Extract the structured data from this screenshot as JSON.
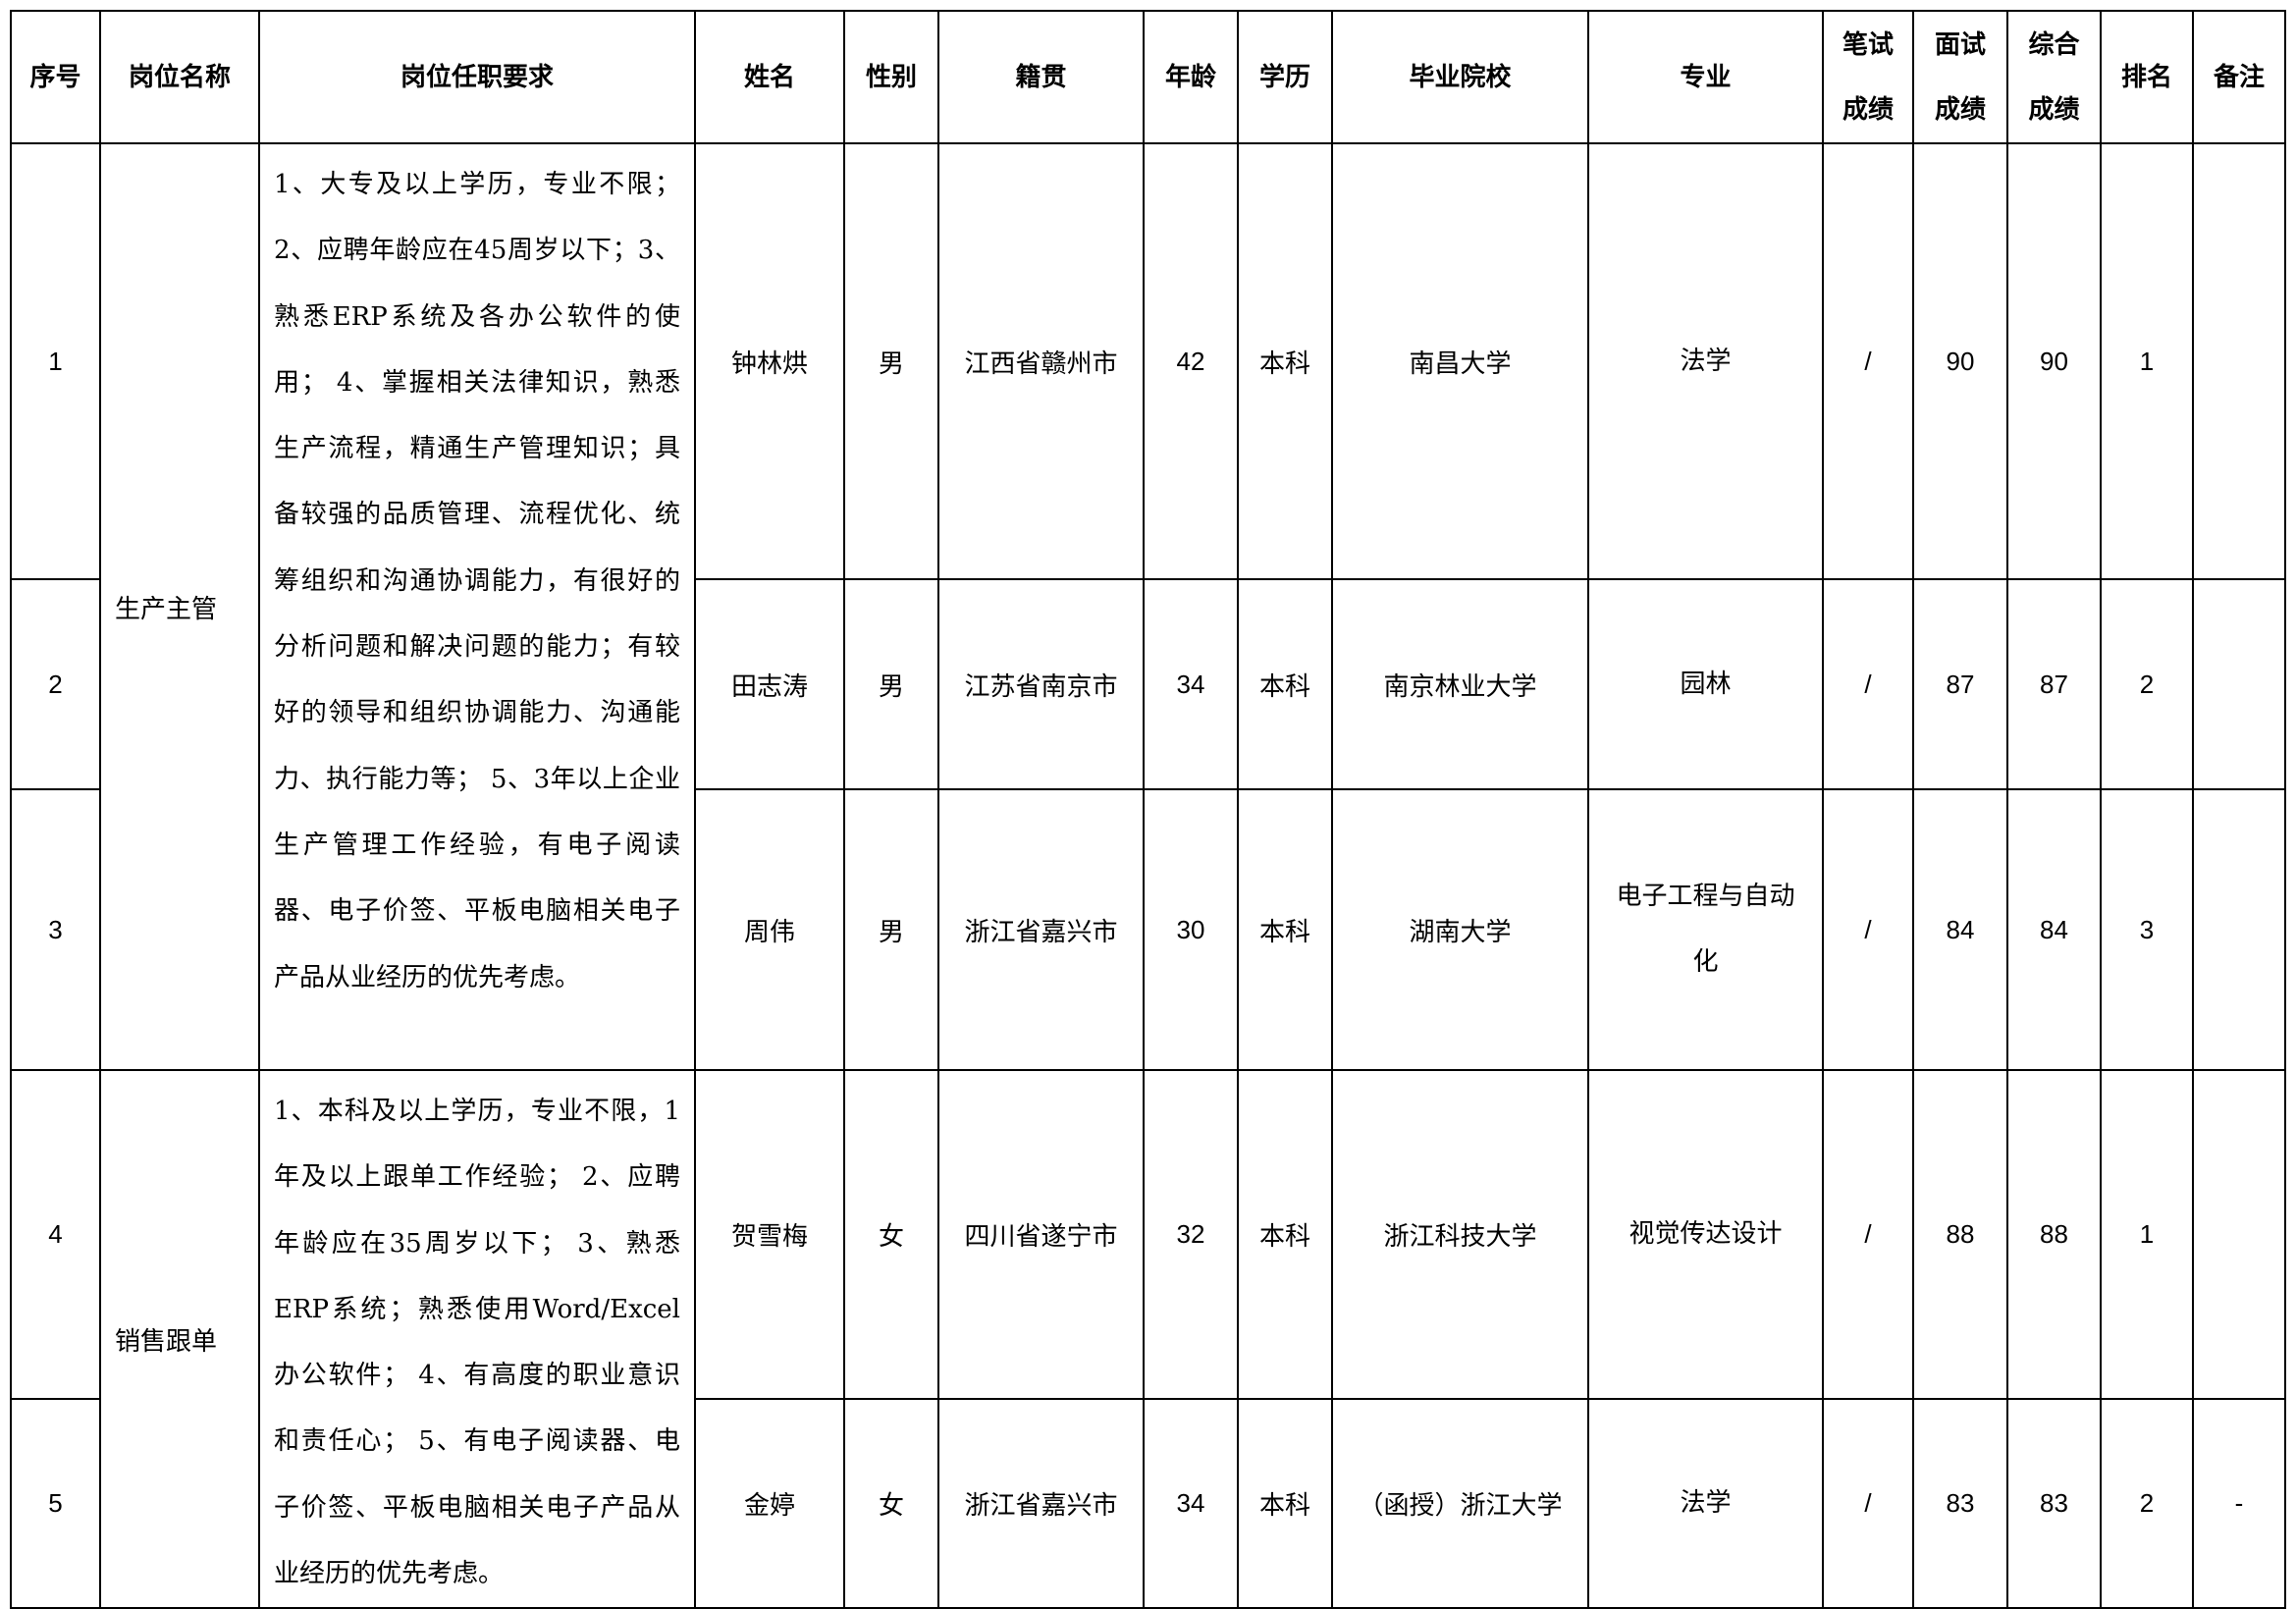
{
  "headers": {
    "seq": "序号",
    "position": "岗位名称",
    "requirements": "岗位任职要求",
    "name": "姓名",
    "gender": "性别",
    "origin": "籍贯",
    "age": "年龄",
    "education": "学历",
    "school": "毕业院校",
    "major": "专业",
    "written_1": "笔试",
    "written_2": "成绩",
    "interview_1": "面试",
    "interview_2": "成绩",
    "total_1": "综合",
    "total_2": "成绩",
    "rank": "排名",
    "remarks": "备注"
  },
  "positions": [
    {
      "name": "生产主管",
      "requirements": "1、大专及以上学历，专业不限；2、应聘年龄应在45周岁以下；3、熟悉ERP系统及各办公软件的使用； 4、掌握相关法律知识，熟悉生产流程，精通生产管理知识；具备较强的品质管理、流程优化、统筹组织和沟通协调能力，有很好的分析问题和解决问题的能力；有较好的领导和组织协调能力、沟通能力、执行能力等； 5、3年以上企业生产管理工作经验，有电子阅读器、电子价签、平板电脑相关电子产品从业经历的优先考虑。"
    },
    {
      "name": "销售跟单",
      "requirements": "1、本科及以上学历，专业不限，1年及以上跟单工作经验； 2、应聘年龄应在35周岁以下； 3、熟悉ERP系统；熟悉使用Word/Excel办公软件； 4、有高度的职业意识和责任心； 5、有电子阅读器、电子价签、平板电脑相关电子产品从业经历的优先考虑。"
    }
  ],
  "rows": [
    {
      "seq": "1",
      "name": "钟林烘",
      "gender": "男",
      "origin": "江西省赣州市",
      "age": "42",
      "education": "本科",
      "school": "南昌大学",
      "major": "法学",
      "written": "/",
      "interview": "90",
      "total": "90",
      "rank": "1",
      "remarks": ""
    },
    {
      "seq": "2",
      "name": "田志涛",
      "gender": "男",
      "origin": "江苏省南京市",
      "age": "34",
      "education": "本科",
      "school": "南京林业大学",
      "major": "园林",
      "written": "/",
      "interview": "87",
      "total": "87",
      "rank": "2",
      "remarks": ""
    },
    {
      "seq": "3",
      "name": "周伟",
      "gender": "男",
      "origin": "浙江省嘉兴市",
      "age": "30",
      "education": "本科",
      "school": "湖南大学",
      "major": "电子工程与自动化",
      "written": "/",
      "interview": "84",
      "total": "84",
      "rank": "3",
      "remarks": ""
    },
    {
      "seq": "4",
      "name": "贺雪梅",
      "gender": "女",
      "origin": "四川省遂宁市",
      "age": "32",
      "education": "本科",
      "school": "浙江科技大学",
      "major": "视觉传达设计",
      "written": "/",
      "interview": "88",
      "total": "88",
      "rank": "1",
      "remarks": ""
    },
    {
      "seq": "5",
      "name": "金婷",
      "gender": "女",
      "origin": "浙江省嘉兴市",
      "age": "34",
      "education": "本科",
      "school": "（函授）浙江大学",
      "major": "法学",
      "written": "/",
      "interview": "83",
      "total": "83",
      "rank": "2",
      "remarks": "-"
    }
  ]
}
